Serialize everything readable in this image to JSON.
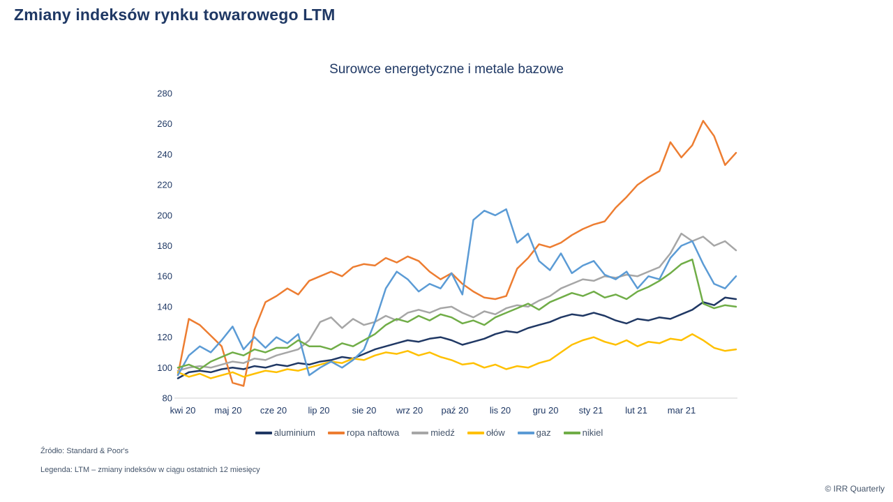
{
  "page": {
    "title": "Zmiany indeksów rynku towarowego LTM"
  },
  "chart_data": {
    "type": "line",
    "title": "Surowce energetyczne i metale bazowe",
    "x_tick_labels": [
      "kwi 20",
      "maj 20",
      "cze 20",
      "lip 20",
      "sie 20",
      "wrz 20",
      "paź 20",
      "lis 20",
      "gru 20",
      "sty 21",
      "lut 21",
      "mar 21"
    ],
    "ylim": [
      80,
      280
    ],
    "y_tick_step": 20,
    "grid": false,
    "legend_position": "bottom",
    "axis_color": "#D9D9D9",
    "tick_label_color": "#1F3864",
    "series": [
      {
        "name": "aluminium",
        "color": "#203864",
        "values": [
          93,
          97,
          98,
          97,
          99,
          100,
          99,
          101,
          100,
          102,
          101,
          103,
          102,
          104,
          105,
          107,
          106,
          109,
          112,
          114,
          116,
          118,
          117,
          119,
          120,
          118,
          115,
          117,
          119,
          122,
          124,
          123,
          126,
          128,
          130,
          133,
          135,
          134,
          136,
          134,
          131,
          129,
          132,
          131,
          133,
          132,
          135,
          138,
          143,
          141,
          146,
          145
        ]
      },
      {
        "name": "ropa naftowa",
        "color": "#ED7D31",
        "values": [
          95,
          132,
          128,
          121,
          114,
          90,
          88,
          125,
          143,
          147,
          152,
          148,
          157,
          160,
          163,
          160,
          166,
          168,
          167,
          172,
          169,
          173,
          170,
          163,
          158,
          162,
          155,
          150,
          146,
          145,
          147,
          165,
          172,
          181,
          179,
          182,
          187,
          191,
          194,
          196,
          205,
          212,
          220,
          225,
          229,
          248,
          238,
          246,
          262,
          252,
          233,
          241
        ]
      },
      {
        "name": "miedź",
        "color": "#A6A6A6",
        "values": [
          98,
          100,
          101,
          100,
          102,
          104,
          103,
          106,
          105,
          108,
          110,
          112,
          118,
          130,
          133,
          126,
          132,
          128,
          130,
          134,
          131,
          136,
          138,
          136,
          139,
          140,
          136,
          133,
          137,
          135,
          139,
          141,
          140,
          144,
          147,
          152,
          155,
          158,
          157,
          160,
          159,
          161,
          160,
          163,
          166,
          175,
          188,
          183,
          186,
          180,
          183,
          177
        ]
      },
      {
        "name": "ołów",
        "color": "#FFC000",
        "values": [
          97,
          94,
          96,
          93,
          95,
          97,
          94,
          96,
          98,
          97,
          99,
          98,
          100,
          102,
          104,
          103,
          106,
          105,
          108,
          110,
          109,
          111,
          108,
          110,
          107,
          105,
          102,
          103,
          100,
          102,
          99,
          101,
          100,
          103,
          105,
          110,
          115,
          118,
          120,
          117,
          115,
          118,
          114,
          117,
          116,
          119,
          118,
          122,
          118,
          113,
          111,
          112
        ]
      },
      {
        "name": "gaz",
        "color": "#5B9BD5",
        "values": [
          95,
          108,
          114,
          110,
          118,
          127,
          112,
          120,
          113,
          120,
          116,
          122,
          95,
          100,
          104,
          100,
          105,
          112,
          130,
          152,
          163,
          158,
          150,
          155,
          152,
          162,
          148,
          197,
          203,
          200,
          204,
          182,
          188,
          170,
          164,
          175,
          162,
          167,
          170,
          161,
          158,
          163,
          152,
          160,
          158,
          172,
          180,
          183,
          168,
          155,
          152,
          160
        ]
      },
      {
        "name": "nikiel",
        "color": "#70AD47",
        "values": [
          100,
          102,
          99,
          104,
          107,
          110,
          108,
          112,
          110,
          113,
          113,
          118,
          114,
          114,
          112,
          116,
          114,
          118,
          122,
          128,
          132,
          130,
          134,
          131,
          135,
          133,
          129,
          131,
          128,
          133,
          136,
          139,
          142,
          138,
          143,
          146,
          149,
          147,
          150,
          146,
          148,
          145,
          150,
          153,
          157,
          162,
          168,
          171,
          142,
          139,
          141,
          140
        ]
      }
    ]
  },
  "footer": {
    "source": "Źródło: Standard  & Poor's",
    "legend_note": "Legenda:  LTM – zmiany indeksów w ciągu ostatnich 12 miesięcy",
    "copyright": "© IRR Quarterly"
  }
}
